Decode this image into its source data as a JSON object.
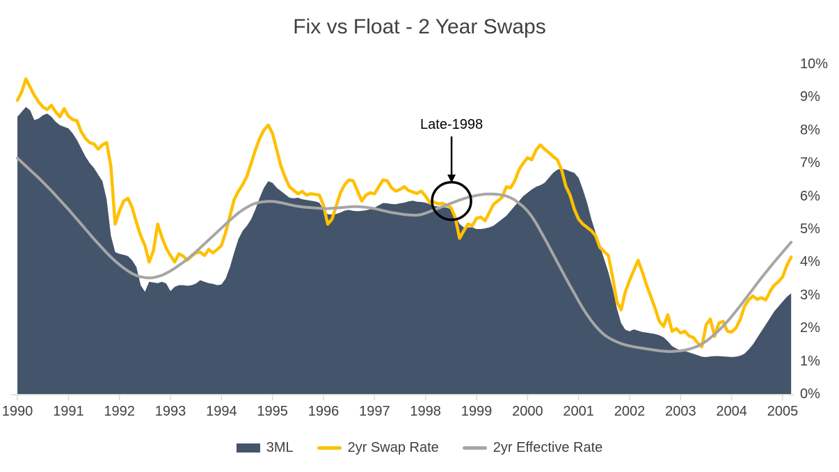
{
  "title": "Fix vs Float - 2 Year Swaps",
  "annotation": {
    "label": "Late-1998",
    "target_year": 1998.51,
    "circle_value": 5.85
  },
  "colors": {
    "area_navy": "#44546A",
    "swap_gold": "#FFC000",
    "effective_gray": "#A6A6A6",
    "text": "#404040",
    "axis_line": "#D9D9D9",
    "annotation_black": "#000000",
    "background": "#FFFFFF"
  },
  "chart_data": {
    "type": "area",
    "title": "Fix vs Float - 2 Year Swaps",
    "xlabel": "",
    "ylabel": "",
    "x_start_year": 1990,
    "frequency": "monthly",
    "ylim": [
      0,
      10
    ],
    "grid": false,
    "legend_position": "bottom",
    "y_tick_labels": [
      "0%",
      "1%",
      "2%",
      "3%",
      "4%",
      "5%",
      "6%",
      "7%",
      "8%",
      "9%",
      "10%"
    ],
    "x_tick_labels": [
      "1990",
      "1991",
      "1992",
      "1993",
      "1994",
      "1995",
      "1996",
      "1997",
      "1998",
      "1999",
      "2000",
      "2001",
      "2002",
      "2003",
      "2004",
      "2005"
    ],
    "series": [
      {
        "name": "3ML",
        "type": "area",
        "color": "#44546A",
        "values": [
          8.4,
          8.55,
          8.7,
          8.6,
          8.3,
          8.35,
          8.45,
          8.5,
          8.4,
          8.25,
          8.15,
          8.1,
          8.05,
          7.9,
          7.7,
          7.45,
          7.2,
          7.0,
          6.85,
          6.65,
          6.45,
          5.9,
          4.8,
          4.3,
          4.25,
          4.22,
          4.18,
          4.05,
          3.85,
          3.3,
          3.1,
          3.4,
          3.38,
          3.36,
          3.4,
          3.35,
          3.12,
          3.25,
          3.3,
          3.3,
          3.28,
          3.3,
          3.35,
          3.45,
          3.4,
          3.36,
          3.34,
          3.3,
          3.32,
          3.5,
          3.85,
          4.3,
          4.7,
          4.95,
          5.1,
          5.3,
          5.6,
          5.95,
          6.25,
          6.45,
          6.4,
          6.25,
          6.15,
          6.05,
          5.95,
          5.93,
          5.95,
          5.9,
          5.88,
          5.86,
          5.84,
          5.8,
          5.6,
          5.45,
          5.44,
          5.46,
          5.5,
          5.56,
          5.58,
          5.55,
          5.54,
          5.55,
          5.57,
          5.6,
          5.65,
          5.72,
          5.79,
          5.78,
          5.76,
          5.75,
          5.78,
          5.8,
          5.84,
          5.86,
          5.83,
          5.82,
          5.8,
          5.75,
          5.7,
          5.68,
          5.66,
          5.65,
          5.6,
          5.4,
          5.15,
          5.05,
          5.05,
          5.05,
          5.0,
          5.0,
          5.02,
          5.05,
          5.1,
          5.2,
          5.3,
          5.4,
          5.55,
          5.7,
          5.85,
          6.0,
          6.1,
          6.2,
          6.28,
          6.33,
          6.4,
          6.55,
          6.7,
          6.8,
          6.83,
          6.8,
          6.75,
          6.7,
          6.55,
          6.2,
          5.8,
          5.3,
          4.9,
          4.5,
          4.1,
          3.7,
          3.2,
          2.6,
          2.15,
          1.95,
          1.9,
          1.96,
          1.92,
          1.88,
          1.86,
          1.84,
          1.82,
          1.78,
          1.72,
          1.6,
          1.45,
          1.38,
          1.33,
          1.3,
          1.26,
          1.22,
          1.18,
          1.13,
          1.12,
          1.14,
          1.15,
          1.15,
          1.14,
          1.13,
          1.12,
          1.13,
          1.16,
          1.22,
          1.35,
          1.5,
          1.7,
          1.9,
          2.1,
          2.3,
          2.5,
          2.65,
          2.8,
          2.95,
          3.05
        ]
      },
      {
        "name": "2yr Swap Rate",
        "type": "line",
        "color": "#FFC000",
        "values": [
          8.9,
          9.15,
          9.55,
          9.3,
          9.05,
          8.85,
          8.7,
          8.62,
          8.75,
          8.55,
          8.4,
          8.65,
          8.42,
          8.32,
          8.28,
          7.95,
          7.75,
          7.62,
          7.58,
          7.42,
          7.55,
          7.62,
          6.9,
          5.15,
          5.55,
          5.85,
          5.93,
          5.65,
          5.2,
          4.8,
          4.5,
          4.0,
          4.35,
          5.15,
          4.75,
          4.42,
          4.2,
          4.0,
          4.25,
          4.18,
          4.06,
          4.18,
          4.28,
          4.3,
          4.2,
          4.38,
          4.28,
          4.38,
          4.5,
          4.9,
          5.4,
          5.9,
          6.15,
          6.35,
          6.6,
          7.0,
          7.4,
          7.75,
          8.0,
          8.15,
          7.9,
          7.4,
          6.9,
          6.56,
          6.28,
          6.17,
          6.07,
          6.14,
          6.03,
          6.07,
          6.05,
          6.03,
          5.72,
          5.15,
          5.3,
          5.7,
          6.1,
          6.35,
          6.49,
          6.46,
          6.15,
          5.85,
          6.03,
          6.1,
          6.07,
          6.28,
          6.49,
          6.46,
          6.25,
          6.15,
          6.2,
          6.28,
          6.17,
          6.12,
          6.08,
          6.15,
          6.0,
          5.8,
          5.82,
          5.76,
          5.78,
          5.72,
          5.65,
          5.35,
          4.72,
          4.95,
          5.15,
          5.1,
          5.33,
          5.36,
          5.25,
          5.5,
          5.75,
          5.85,
          5.96,
          6.28,
          6.25,
          6.46,
          6.8,
          7.0,
          7.16,
          7.1,
          7.4,
          7.55,
          7.42,
          7.32,
          7.2,
          7.1,
          6.8,
          6.3,
          6.03,
          5.6,
          5.3,
          5.15,
          5.05,
          4.95,
          4.8,
          4.45,
          4.32,
          4.2,
          3.55,
          2.8,
          2.55,
          3.1,
          3.45,
          3.75,
          4.05,
          3.7,
          3.3,
          2.95,
          2.6,
          2.2,
          2.05,
          2.4,
          1.9,
          1.98,
          1.85,
          1.9,
          1.76,
          1.71,
          1.55,
          1.43,
          2.1,
          2.27,
          1.75,
          2.15,
          2.2,
          1.9,
          1.88,
          2.0,
          2.25,
          2.65,
          2.85,
          2.97,
          2.87,
          2.92,
          2.85,
          3.1,
          3.3,
          3.4,
          3.55,
          3.9,
          4.15
        ]
      },
      {
        "name": "2yr Effective Rate",
        "type": "line",
        "color": "#A6A6A6",
        "values": [
          7.15,
          7.03,
          6.91,
          6.79,
          6.67,
          6.55,
          6.42,
          6.29,
          6.16,
          6.02,
          5.88,
          5.74,
          5.6,
          5.45,
          5.3,
          5.15,
          5.0,
          4.85,
          4.7,
          4.56,
          4.42,
          4.28,
          4.15,
          4.03,
          3.92,
          3.82,
          3.73,
          3.65,
          3.59,
          3.55,
          3.53,
          3.52,
          3.53,
          3.56,
          3.6,
          3.66,
          3.73,
          3.81,
          3.9,
          3.99,
          4.09,
          4.2,
          4.31,
          4.43,
          4.55,
          4.67,
          4.79,
          4.91,
          5.03,
          5.15,
          5.27,
          5.38,
          5.49,
          5.58,
          5.66,
          5.73,
          5.78,
          5.81,
          5.83,
          5.84,
          5.84,
          5.82,
          5.8,
          5.77,
          5.74,
          5.71,
          5.69,
          5.67,
          5.66,
          5.65,
          5.64,
          5.63,
          5.62,
          5.62,
          5.63,
          5.64,
          5.65,
          5.66,
          5.67,
          5.68,
          5.68,
          5.67,
          5.66,
          5.64,
          5.62,
          5.59,
          5.56,
          5.53,
          5.5,
          5.48,
          5.46,
          5.44,
          5.43,
          5.42,
          5.42,
          5.44,
          5.48,
          5.53,
          5.58,
          5.63,
          5.68,
          5.73,
          5.78,
          5.83,
          5.88,
          5.92,
          5.96,
          5.99,
          6.02,
          6.04,
          6.06,
          6.06,
          6.06,
          6.05,
          6.03,
          6.0,
          5.95,
          5.88,
          5.78,
          5.68,
          5.55,
          5.38,
          5.18,
          4.95,
          4.72,
          4.48,
          4.24,
          4.0,
          3.76,
          3.52,
          3.28,
          3.05,
          2.82,
          2.6,
          2.4,
          2.22,
          2.06,
          1.92,
          1.8,
          1.71,
          1.64,
          1.58,
          1.53,
          1.49,
          1.46,
          1.43,
          1.41,
          1.39,
          1.37,
          1.35,
          1.33,
          1.31,
          1.3,
          1.29,
          1.29,
          1.3,
          1.31,
          1.33,
          1.36,
          1.4,
          1.45,
          1.52,
          1.6,
          1.7,
          1.81,
          1.93,
          2.06,
          2.2,
          2.35,
          2.51,
          2.67,
          2.84,
          3.01,
          3.18,
          3.35,
          3.52,
          3.68,
          3.84,
          4.0,
          4.15,
          4.3,
          4.45,
          4.6
        ]
      }
    ]
  }
}
